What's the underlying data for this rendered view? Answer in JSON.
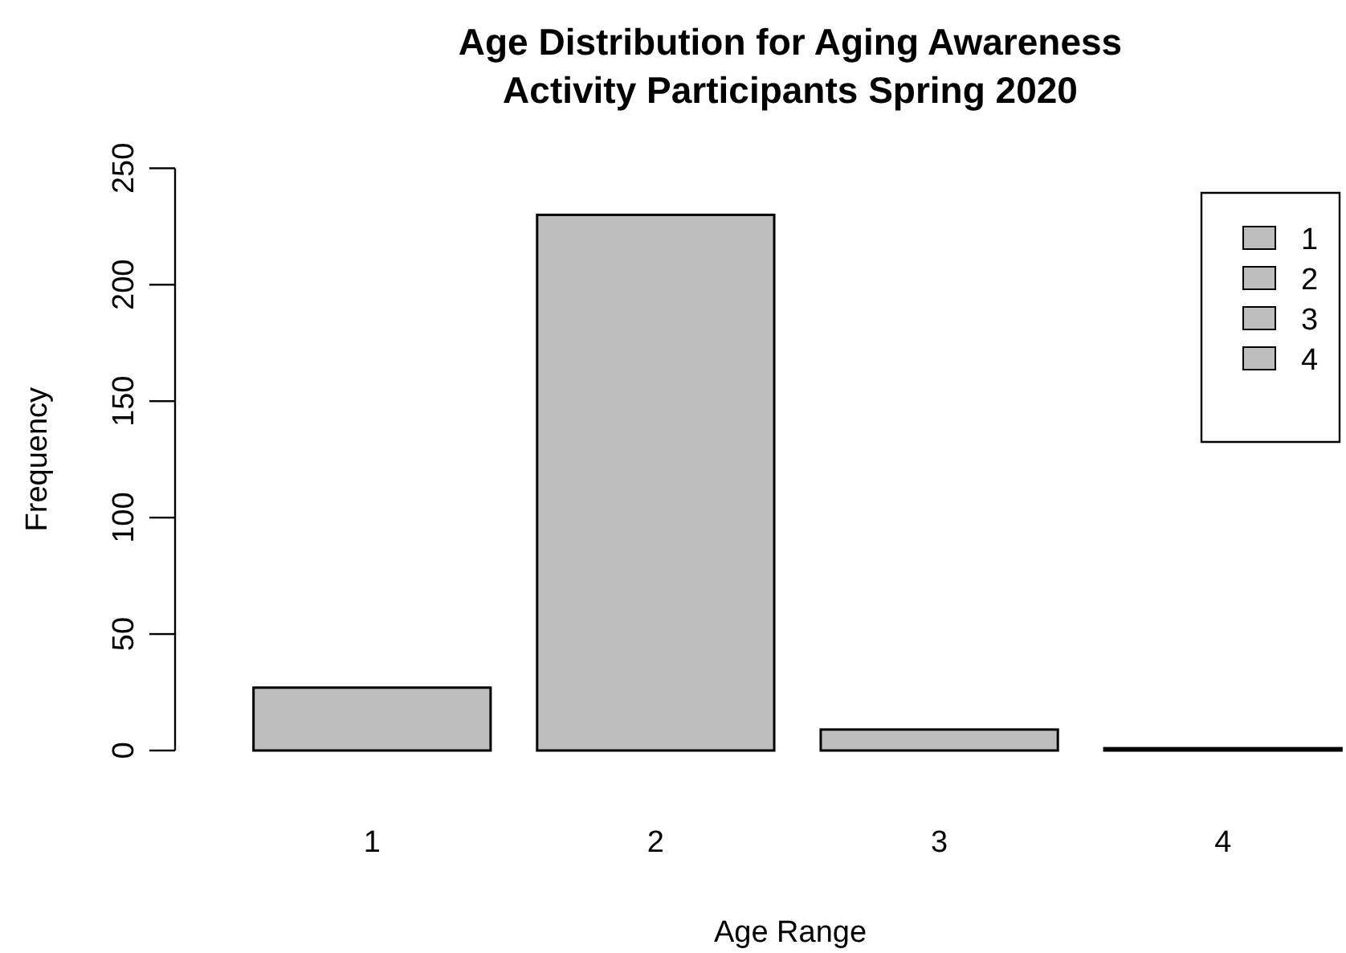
{
  "chart_data": {
    "type": "bar",
    "title": "Age Distribution for Aging Awareness\nActivity Participants Spring 2020",
    "xlabel": "Age Range",
    "ylabel": "Frequency",
    "categories": [
      "1",
      "2",
      "3",
      "4"
    ],
    "stacked": true,
    "series": [
      {
        "name": "1",
        "color": "#bebebe",
        "values": [
          27,
          null,
          null,
          null
        ]
      },
      {
        "name": "2",
        "color": "#bebebe",
        "values": [
          null,
          230,
          null,
          null
        ]
      },
      {
        "name": "3",
        "color": "#bebebe",
        "values": [
          null,
          null,
          9,
          null
        ]
      },
      {
        "name": "4",
        "color": "#bebebe",
        "values": [
          null,
          null,
          null,
          1
        ]
      }
    ],
    "ylim": [
      0,
      250
    ],
    "yticks": [
      0,
      50,
      100,
      150,
      200,
      250
    ],
    "legend": "top right"
  }
}
